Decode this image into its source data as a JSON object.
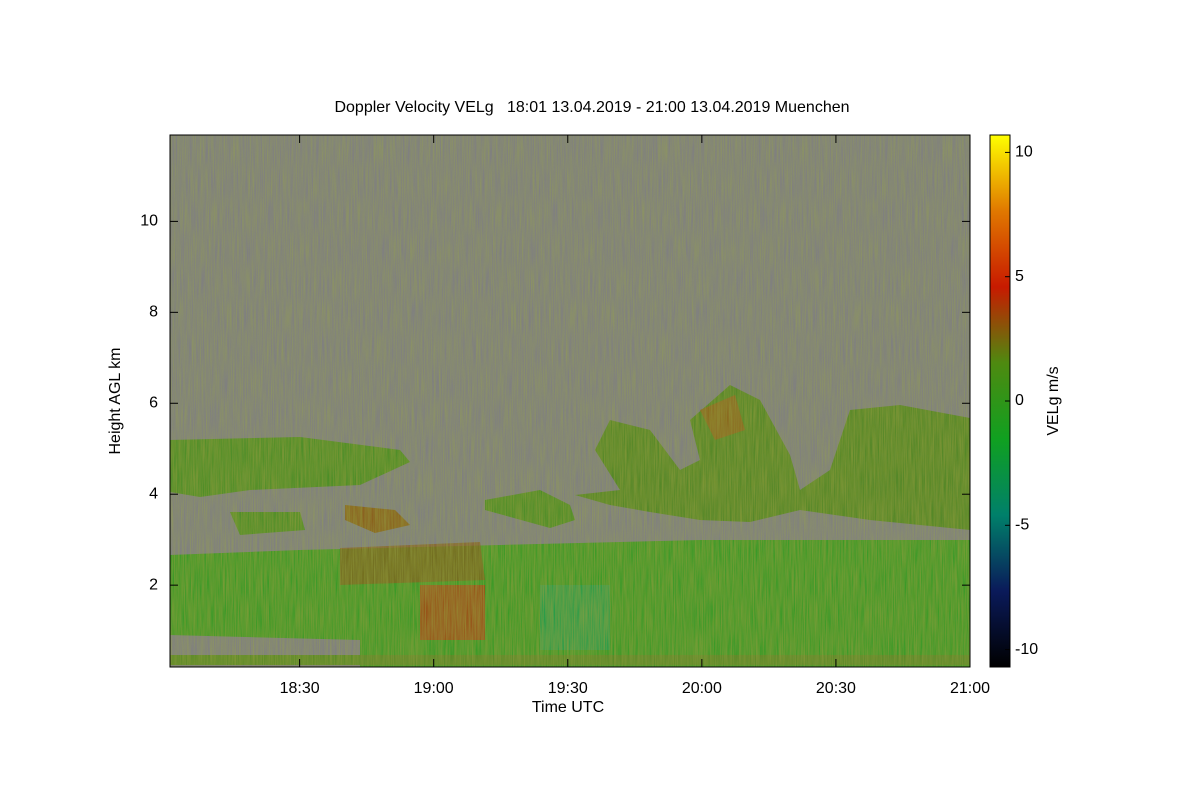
{
  "chart_data": {
    "type": "heatmap",
    "title": "Doppler Velocity VELg   18:01 13.04.2019 - 21:00 13.04.2019 Muenchen",
    "xlabel": "Time UTC",
    "ylabel": "Height AGL km",
    "xlim": [
      "18:01",
      "21:00"
    ],
    "xticks": [
      "18:30",
      "19:00",
      "19:30",
      "20:00",
      "20:30",
      "21:00"
    ],
    "ylim": [
      0.2,
      11.9
    ],
    "yticks": [
      2,
      4,
      6,
      8,
      10
    ],
    "colorbar": {
      "label": "VELg m/s",
      "lim": [
        -10.7,
        10.7
      ],
      "ticks": [
        -10,
        -5,
        0,
        5,
        10
      ],
      "colors": [
        "#000000",
        "#0a1a5a",
        "#00806a",
        "#10a020",
        "#4e8a10",
        "#c81a00",
        "#e07800",
        "#ffff00"
      ]
    }
  }
}
